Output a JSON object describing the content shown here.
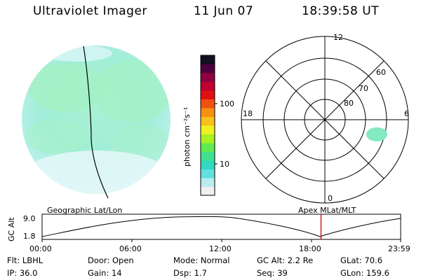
{
  "header": {
    "title": "Ultraviolet Imager",
    "date": "11 Jun 07",
    "time": "18:39:58 UT"
  },
  "colorbar": {
    "unit_label": "photon cm⁻²s⁻¹",
    "tick_100": "100",
    "tick_10": "10",
    "colors": [
      "#f0f0f0",
      "#b8ecf0",
      "#60e0e0",
      "#30d8c0",
      "#40e090",
      "#60ec50",
      "#a8f020",
      "#f0f020",
      "#f8c018",
      "#f89010",
      "#f05010",
      "#e01010",
      "#c00030",
      "#900040",
      "#500040",
      "#101020"
    ]
  },
  "polar": {
    "hour_labels": [
      "12",
      "18",
      "6",
      "0"
    ],
    "lat_labels": [
      "60",
      "70",
      "80"
    ]
  },
  "timeline": {
    "ylabel": "GC Alt",
    "ymax": "9.0",
    "ymin": "1.8",
    "left_title": "Geographic Lat/Lon",
    "right_title": "Apex MLat/MLT",
    "x_ticks": [
      "00:00",
      "06:00",
      "12:00",
      "18:00",
      "23:59"
    ],
    "marker_time_hours": 18.67,
    "marker_color": "#cc0000"
  },
  "info": {
    "flt": "Flt: LBHL",
    "door": "Door: Open",
    "mode": "Mode: Normal",
    "gc_alt": "GC Alt: 2.2 Re",
    "glat": "GLat:  70.6",
    "ip": "IP: 36.0",
    "gain": "Gain: 14",
    "dsp": "Dsp:    1.7",
    "seq": "Seq: 39",
    "glon": "GLon: 159.6"
  }
}
